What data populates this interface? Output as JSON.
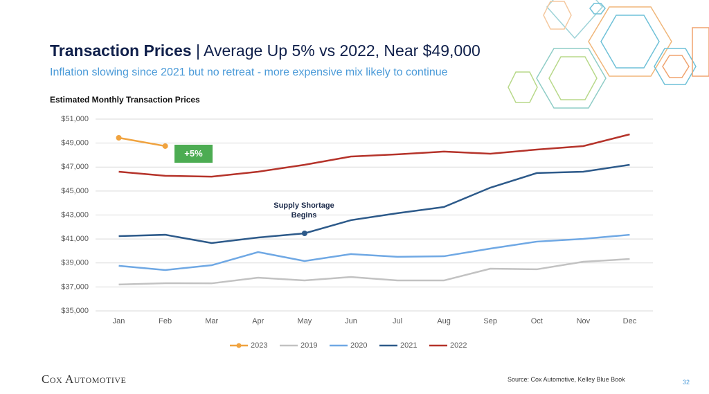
{
  "title": "Transaction Prices",
  "title_detail": "| Average Up 5% vs 2022, Near $49,000",
  "subtitle": "Inflation slowing since 2021 but no retreat - more expensive mix likely to continue",
  "source": "Source: Cox Automotive, Kelley Blue Book",
  "logo": "Cox Automotive",
  "page_number": "32",
  "chart_data": {
    "type": "line",
    "title": "Estimated Monthly Transaction Prices",
    "categories": [
      "Jan",
      "Feb",
      "Mar",
      "Apr",
      "May",
      "Jun",
      "Jul",
      "Aug",
      "Sep",
      "Oct",
      "Nov",
      "Dec"
    ],
    "series": [
      {
        "name": "2023",
        "color": "#f0a33f",
        "markers": true,
        "values": [
          49440,
          48750,
          null,
          null,
          null,
          null,
          null,
          null,
          null,
          null,
          null,
          null
        ]
      },
      {
        "name": "2019",
        "color": "#c2c2c2",
        "values": [
          37200,
          37310,
          37300,
          37770,
          37540,
          37830,
          37540,
          37540,
          38520,
          38470,
          39100,
          39330
        ]
      },
      {
        "name": "2020",
        "color": "#6fa8e4",
        "values": [
          38760,
          38410,
          38810,
          39910,
          39160,
          39740,
          39510,
          39560,
          40200,
          40780,
          41010,
          41350
        ]
      },
      {
        "name": "2021",
        "color": "#2d5a8a",
        "values": [
          41240,
          41350,
          40660,
          41120,
          41470,
          42570,
          43150,
          43670,
          45280,
          46500,
          46610,
          47190
        ]
      },
      {
        "name": "2022",
        "color": "#b5332a",
        "values": [
          46610,
          46270,
          46200,
          46610,
          47190,
          47880,
          48060,
          48290,
          48110,
          48460,
          48750,
          49730
        ]
      }
    ],
    "annotations": [
      "+5%",
      "Supply Shortage Begins"
    ],
    "ylim": [
      35000,
      51000
    ],
    "yticks": [
      {
        "value": 35000,
        "label": "$35,000"
      },
      {
        "value": 37000,
        "label": "$37,000"
      },
      {
        "value": 39000,
        "label": "$39,000"
      },
      {
        "value": 41000,
        "label": "$41,000"
      },
      {
        "value": 43000,
        "label": "$43,000"
      },
      {
        "value": 45000,
        "label": "$45,000"
      },
      {
        "value": 47000,
        "label": "$47,000"
      },
      {
        "value": 49000,
        "label": "$49,000"
      },
      {
        "value": 51000,
        "label": "$51,000"
      }
    ],
    "grid": true,
    "legend": "bottom"
  }
}
